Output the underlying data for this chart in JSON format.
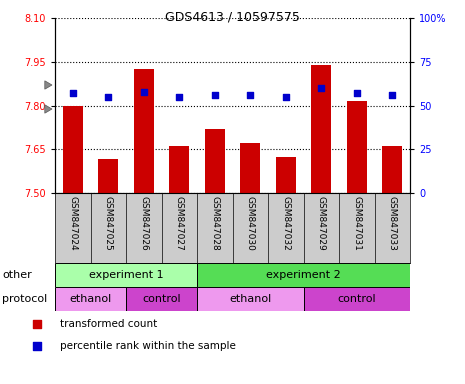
{
  "title": "GDS4613 / 10597575",
  "samples": [
    "GSM847024",
    "GSM847025",
    "GSM847026",
    "GSM847027",
    "GSM847028",
    "GSM847030",
    "GSM847032",
    "GSM847029",
    "GSM847031",
    "GSM847033"
  ],
  "bar_values": [
    7.8,
    7.615,
    7.925,
    7.66,
    7.72,
    7.67,
    7.625,
    7.94,
    7.815,
    7.66
  ],
  "percentile_values": [
    57,
    55,
    58,
    55,
    56,
    56,
    55,
    60,
    57,
    56
  ],
  "ylim": [
    7.5,
    8.1
  ],
  "y2lim": [
    0,
    100
  ],
  "yticks": [
    7.5,
    7.65,
    7.8,
    7.95,
    8.1
  ],
  "y2ticks": [
    0,
    25,
    50,
    75,
    100
  ],
  "bar_color": "#cc0000",
  "dot_color": "#0000cc",
  "bar_bottom": 7.5,
  "other_row": [
    {
      "label": "experiment 1",
      "start": 0,
      "end": 4,
      "color": "#aaffaa"
    },
    {
      "label": "experiment 2",
      "start": 4,
      "end": 10,
      "color": "#55dd55"
    }
  ],
  "protocol_row": [
    {
      "label": "ethanol",
      "start": 0,
      "end": 2,
      "color": "#ee99ee"
    },
    {
      "label": "control",
      "start": 2,
      "end": 4,
      "color": "#cc44cc"
    },
    {
      "label": "ethanol",
      "start": 4,
      "end": 7,
      "color": "#ee99ee"
    },
    {
      "label": "control",
      "start": 7,
      "end": 10,
      "color": "#cc44cc"
    }
  ],
  "legend_items": [
    {
      "label": "transformed count",
      "color": "#cc0000"
    },
    {
      "label": "percentile rank within the sample",
      "color": "#0000cc"
    }
  ],
  "other_label": "other",
  "protocol_label": "protocol",
  "sample_bg": "#cccccc"
}
